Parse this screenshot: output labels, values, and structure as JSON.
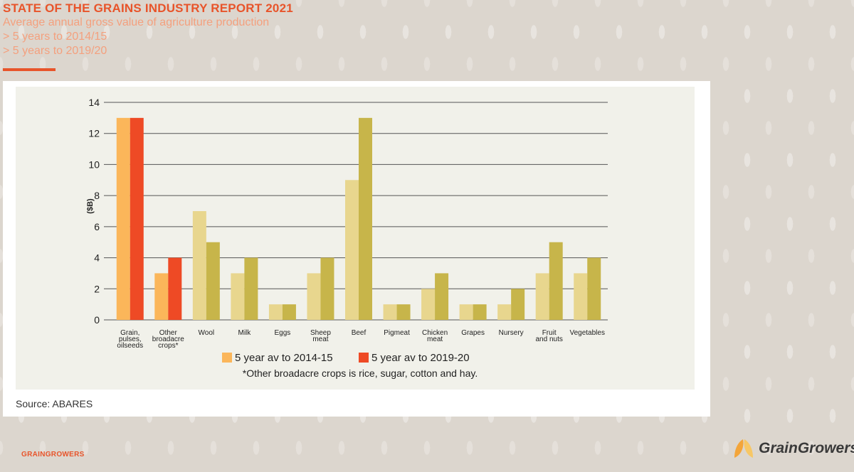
{
  "header": {
    "title": "STATE OF THE GRAINS INDUSTRY REPORT 2021",
    "subtitle": "Average annual gross value of agriculture production",
    "line1": "> 5 years to 2014/15",
    "line2": "> 5 years to 2019/20"
  },
  "footer": {
    "source": "Source: ABARES",
    "brand": "GRAINGROWERS",
    "logo_text": "GrainGrowers"
  },
  "chart_data": {
    "type": "bar",
    "ylabel": "($B)",
    "ylim": [
      0,
      14
    ],
    "yticks": [
      0,
      2,
      4,
      6,
      8,
      10,
      12,
      14
    ],
    "grid": true,
    "legend_position": "bottom",
    "categories": [
      [
        "Grain,",
        "pulses,",
        "oilseeds"
      ],
      [
        "Other",
        "broadacre",
        "crops*"
      ],
      [
        "Wool"
      ],
      [
        "Milk"
      ],
      [
        "Eggs"
      ],
      [
        "Sheep",
        "meat"
      ],
      [
        "Beef"
      ],
      [
        "Pigmeat"
      ],
      [
        "Chicken",
        "meat"
      ],
      [
        "Grapes"
      ],
      [
        "Nursery"
      ],
      [
        "Fruit",
        "and nuts"
      ],
      [
        "Vegetables"
      ]
    ],
    "series": [
      {
        "name": "5 year av to 2014-15",
        "values": [
          13,
          3,
          7,
          3,
          1,
          3,
          9,
          1,
          2,
          1,
          1,
          3,
          3
        ]
      },
      {
        "name": "5 year av to 2019-20",
        "values": [
          13,
          4,
          5,
          4,
          1,
          4,
          13,
          1,
          3,
          1,
          2,
          5,
          4
        ]
      }
    ],
    "colors": {
      "grain_2015": "#fbb65a",
      "grain_2020": "#ee4a25",
      "other_2015": "#e8d68e",
      "other_2020": "#c7b54a"
    },
    "note": "*Other broadacre crops is rice, sugar, cotton and hay."
  }
}
